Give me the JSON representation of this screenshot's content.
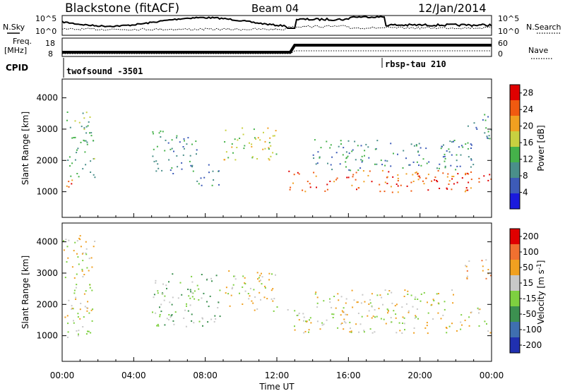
{
  "header": {
    "station": "Blackstone (fitACF)",
    "beam": "Beam 04",
    "date": "12/Jan/2014"
  },
  "summary_panels": {
    "nsky_label": "N.Sky",
    "nsearch_label": "N.Search",
    "noise_ticks_left": [
      "10^5",
      "10^0"
    ],
    "noise_ticks_right": [
      "10^5",
      "10^0"
    ],
    "freq_label": "Freq.",
    "freq_unit": "[MHz]",
    "freq_ticks": [
      "18",
      "8"
    ],
    "nave_label": "Nave",
    "nave_ticks": [
      "60",
      "0"
    ],
    "cpid_label": "CPID",
    "cpid_segments": [
      {
        "name": "twofsound -3501",
        "start_hour": 0
      },
      {
        "name": "rbsp-tau 210",
        "start_hour": 18
      }
    ]
  },
  "chart_data": [
    {
      "type": "heatmap",
      "title": "",
      "xlabel": "Time UT",
      "ylabel": "Slant Range [km]",
      "x_ticks": [
        "00:00",
        "04:00",
        "08:00",
        "12:00",
        "16:00",
        "20:00",
        "00:00"
      ],
      "xlim_hours": [
        0,
        24
      ],
      "y_ticks": [
        1000,
        2000,
        3000,
        4000
      ],
      "ylim": [
        180,
        4600
      ],
      "colorbar": {
        "label": "Power [dB]",
        "ticks": [
          4,
          8,
          12,
          16,
          20,
          24,
          28
        ],
        "range": [
          0,
          30
        ],
        "colors": [
          "#1a1adc",
          "#3d5bb8",
          "#4a8f8a",
          "#45b24a",
          "#c8d040",
          "#f0a020",
          "#f05a10",
          "#e00000"
        ]
      },
      "scatter_regions": [
        {
          "t0": 0.0,
          "t1": 0.6,
          "r0": 900,
          "r1": 1500,
          "level": 6
        },
        {
          "t0": 0.2,
          "t1": 1.8,
          "r0": 1400,
          "r1": 3600,
          "level": 3
        },
        {
          "t0": 5.0,
          "t1": 7.5,
          "r0": 1600,
          "r1": 3000,
          "level": 2
        },
        {
          "t0": 7.5,
          "t1": 8.8,
          "r0": 1200,
          "r1": 1900,
          "level": 2
        },
        {
          "t0": 9.0,
          "t1": 12.0,
          "r0": 2000,
          "r1": 3100,
          "level": 4
        },
        {
          "t0": 12.5,
          "t1": 23.0,
          "r0": 1000,
          "r1": 1700,
          "level": 6
        },
        {
          "t0": 14.0,
          "t1": 23.0,
          "r0": 1700,
          "r1": 2700,
          "level": 2
        },
        {
          "t0": 22.5,
          "t1": 24.0,
          "r0": 1300,
          "r1": 1800,
          "level": 6
        },
        {
          "t0": 22.5,
          "t1": 24.0,
          "r0": 2700,
          "r1": 3500,
          "level": 2
        }
      ]
    },
    {
      "type": "heatmap",
      "title": "",
      "xlabel": "Time UT",
      "ylabel": "Slant Range [km]",
      "x_ticks": [
        "00:00",
        "04:00",
        "08:00",
        "12:00",
        "16:00",
        "20:00",
        "00:00"
      ],
      "xlim_hours": [
        0,
        24
      ],
      "y_ticks": [
        1000,
        2000,
        3000,
        4000
      ],
      "ylim": [
        180,
        4600
      ],
      "colorbar": {
        "label": "Velocity [m s^-1]",
        "ticks": [
          200,
          100,
          50,
          15,
          -15,
          -50,
          -100,
          -200
        ],
        "range": [
          -250,
          250
        ],
        "colors": [
          "#2030b0",
          "#3f6fb0",
          "#3c9050",
          "#7ed040",
          "#c8c8c8",
          "#f0a020",
          "#f07030",
          "#e00000"
        ]
      },
      "scatter_regions": [
        {
          "t0": 0.0,
          "t1": 1.8,
          "r0": 900,
          "r1": 4300,
          "level": 4
        },
        {
          "t0": 5.0,
          "t1": 8.8,
          "r0": 1300,
          "r1": 3000,
          "level": 3
        },
        {
          "t0": 9.0,
          "t1": 12.0,
          "r0": 1800,
          "r1": 3100,
          "level": 4
        },
        {
          "t0": 12.5,
          "t1": 24.0,
          "r0": 1100,
          "r1": 1900,
          "level": 4
        },
        {
          "t0": 14.0,
          "t1": 22.0,
          "r0": 1900,
          "r1": 2500,
          "level": 4
        },
        {
          "t0": 22.5,
          "t1": 24.0,
          "r0": 2800,
          "r1": 3500,
          "level": 5
        }
      ]
    }
  ]
}
